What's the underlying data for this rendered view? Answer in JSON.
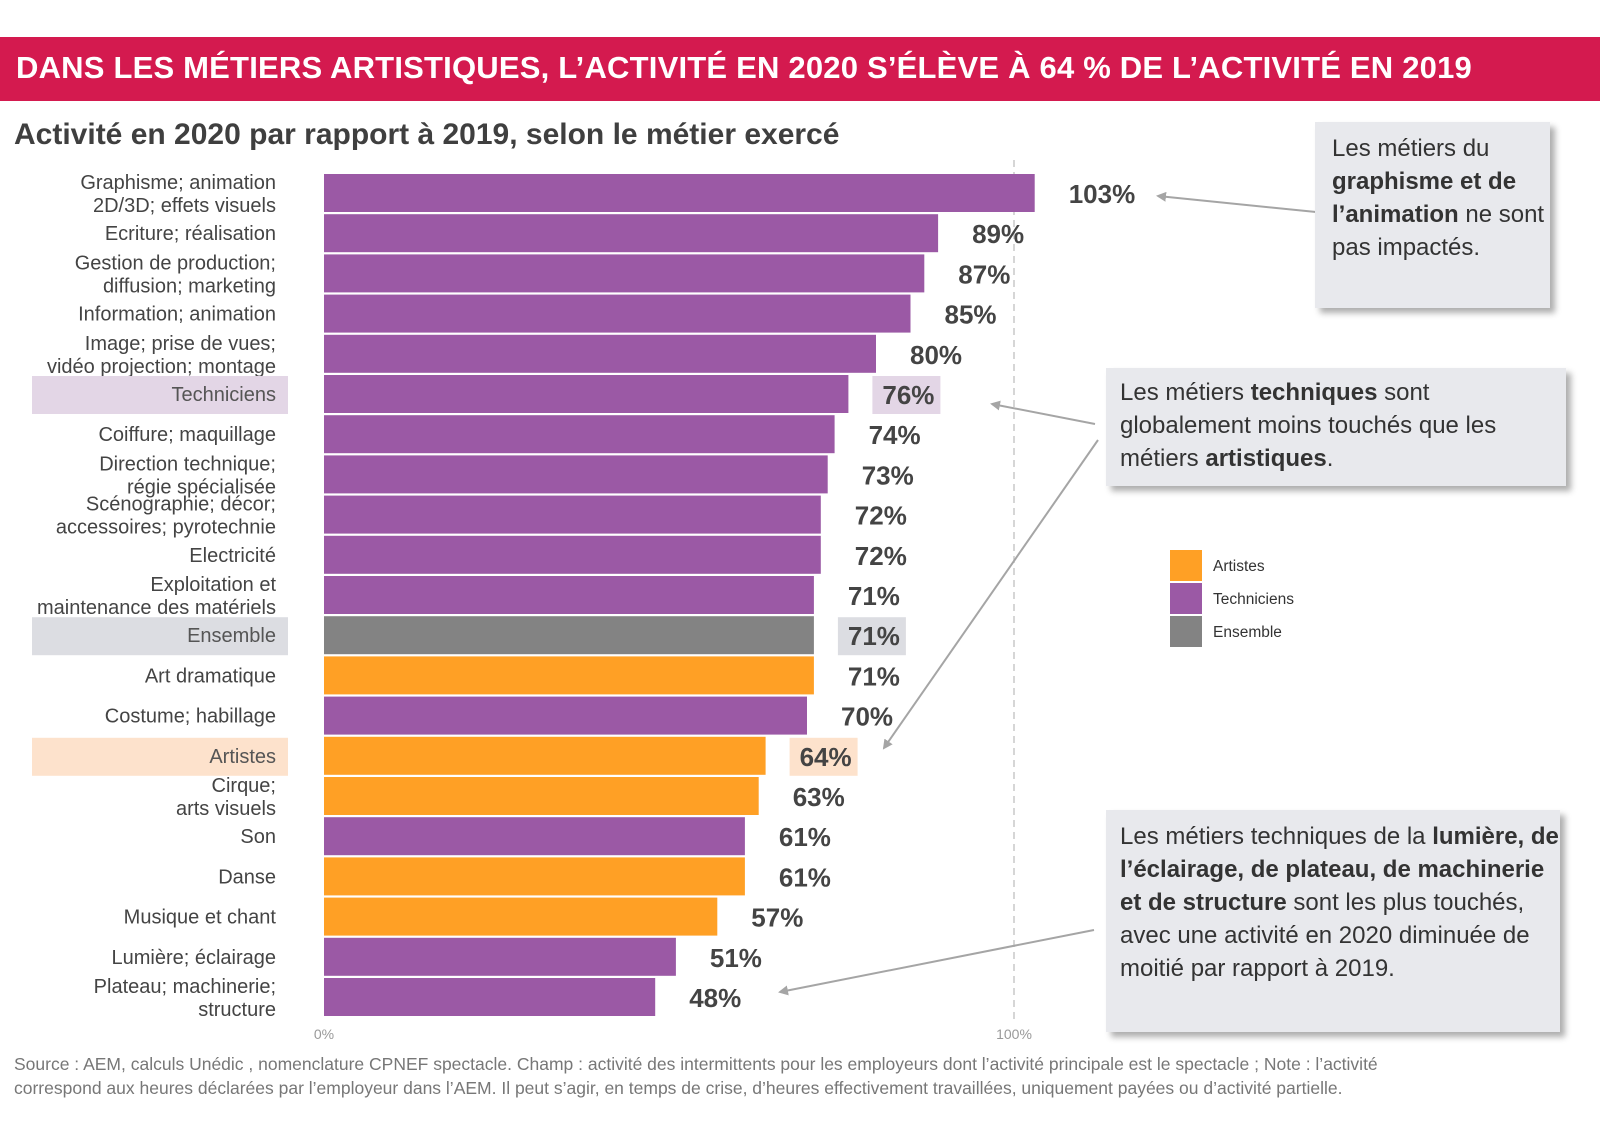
{
  "header": {
    "title": "DANS LES MÉTIERS ARTISTIQUES, L’ACTIVITÉ EN 2020 S’ÉLÈVE À 64 % DE L’ACTIVITÉ EN 2019",
    "subtitle": "Activité en 2020 par rapport à 2019, selon le métier exercé"
  },
  "colors": {
    "banner": "#d41a4f",
    "artistes": "#ffa025",
    "techniciens": "#9b59a5",
    "ensemble": "#838383"
  },
  "chart_data": {
    "type": "bar",
    "orientation": "horizontal",
    "title": "Activité en 2020 par rapport à 2019, selon le métier exercé",
    "xlim": [
      0,
      103
    ],
    "xticks": [
      {
        "value": 0,
        "label": "0%"
      },
      {
        "value": 100,
        "label": "100%"
      }
    ],
    "reference_line": 100,
    "grid": false,
    "legend_position": "right",
    "legend": [
      {
        "key": "artistes",
        "label": "Artistes"
      },
      {
        "key": "techniciens",
        "label": "Techniciens"
      },
      {
        "key": "ensemble",
        "label": "Ensemble"
      }
    ],
    "bars": [
      {
        "category": [
          "Graphisme; animation",
          "2D/3D; effets visuels"
        ],
        "value": 103,
        "label": "103%",
        "group": "techniciens",
        "highlight": false
      },
      {
        "category": [
          "Ecriture; réalisation"
        ],
        "value": 89,
        "label": "89%",
        "group": "techniciens",
        "highlight": false
      },
      {
        "category": [
          "Gestion de production;",
          "diffusion; marketing"
        ],
        "value": 87,
        "label": "87%",
        "group": "techniciens",
        "highlight": false
      },
      {
        "category": [
          "Information; animation"
        ],
        "value": 85,
        "label": "85%",
        "group": "techniciens",
        "highlight": false
      },
      {
        "category": [
          "Image; prise de vues;",
          "vidéo projection; montage"
        ],
        "value": 80,
        "label": "80%",
        "group": "techniciens",
        "highlight": false
      },
      {
        "category": [
          "Techniciens"
        ],
        "value": 76,
        "label": "76%",
        "group": "techniciens",
        "highlight": true
      },
      {
        "category": [
          "Coiffure; maquillage"
        ],
        "value": 74,
        "label": "74%",
        "group": "techniciens",
        "highlight": false
      },
      {
        "category": [
          "Direction technique;",
          "régie spécialisée"
        ],
        "value": 73,
        "label": "73%",
        "group": "techniciens",
        "highlight": false
      },
      {
        "category": [
          "Scénographie; décor;",
          "accessoires; pyrotechnie"
        ],
        "value": 72,
        "label": "72%",
        "group": "techniciens",
        "highlight": false
      },
      {
        "category": [
          "Electricité"
        ],
        "value": 72,
        "label": "72%",
        "group": "techniciens",
        "highlight": false
      },
      {
        "category": [
          "Exploitation et",
          "maintenance des matériels"
        ],
        "value": 71,
        "label": "71%",
        "group": "techniciens",
        "highlight": false
      },
      {
        "category": [
          "Ensemble"
        ],
        "value": 71,
        "label": "71%",
        "group": "ensemble",
        "highlight": true
      },
      {
        "category": [
          "Art dramatique"
        ],
        "value": 71,
        "label": "71%",
        "group": "artistes",
        "highlight": false
      },
      {
        "category": [
          "Costume; habillage"
        ],
        "value": 70,
        "label": "70%",
        "group": "techniciens",
        "highlight": false
      },
      {
        "category": [
          "Artistes"
        ],
        "value": 64,
        "label": "64%",
        "group": "artistes",
        "highlight": true
      },
      {
        "category": [
          "Cirque;",
          "arts visuels"
        ],
        "value": 63,
        "label": "63%",
        "group": "artistes",
        "highlight": false
      },
      {
        "category": [
          "Son"
        ],
        "value": 61,
        "label": "61%",
        "group": "techniciens",
        "highlight": false
      },
      {
        "category": [
          "Danse"
        ],
        "value": 61,
        "label": "61%",
        "group": "artistes",
        "highlight": false
      },
      {
        "category": [
          "Musique et chant"
        ],
        "value": 57,
        "label": "57%",
        "group": "artistes",
        "highlight": false
      },
      {
        "category": [
          "Lumière; éclairage"
        ],
        "value": 51,
        "label": "51%",
        "group": "techniciens",
        "highlight": false
      },
      {
        "category": [
          "Plateau; machinerie;",
          "structure"
        ],
        "value": 48,
        "label": "48%",
        "group": "techniciens",
        "highlight": false
      }
    ],
    "annotations": [
      {
        "id": "note1",
        "points_to": 0,
        "parts": [
          {
            "t": "Les métiers du ",
            "b": false
          },
          {
            "t": "graphisme et de l’animation",
            "b": true
          },
          {
            "t": " ne sont pas impactés.",
            "b": false
          }
        ]
      },
      {
        "id": "note2",
        "points_to": [
          5,
          14
        ],
        "parts": [
          {
            "t": "Les métiers ",
            "b": false
          },
          {
            "t": "techniques",
            "b": true
          },
          {
            "t": " sont globalement moins touchés que les métiers ",
            "b": false
          },
          {
            "t": "artistiques",
            "b": true
          },
          {
            "t": ".",
            "b": false
          }
        ]
      },
      {
        "id": "note3",
        "points_to": 20,
        "parts": [
          {
            "t": "Les métiers techniques de la ",
            "b": false
          },
          {
            "t": "lumière, de l’éclairage, de plateau, de machinerie et de structure",
            "b": true
          },
          {
            "t": " sont les plus touchés, avec une activité en 2020 diminuée de moitié par rapport à 2019.",
            "b": false
          }
        ]
      }
    ]
  },
  "source": {
    "line1": "Source : AEM, calculs Unédic , nomenclature CPNEF spectacle. Champ : activité des intermittents pour les employeurs dont l’activité principale est le spectacle ; Note : l’activité",
    "line2": "correspond aux heures déclarées par l’employeur dans l’AEM. Il peut s’agir, en temps de crise, d’heures effectivement travaillées, uniquement payées ou d’activité partielle."
  }
}
